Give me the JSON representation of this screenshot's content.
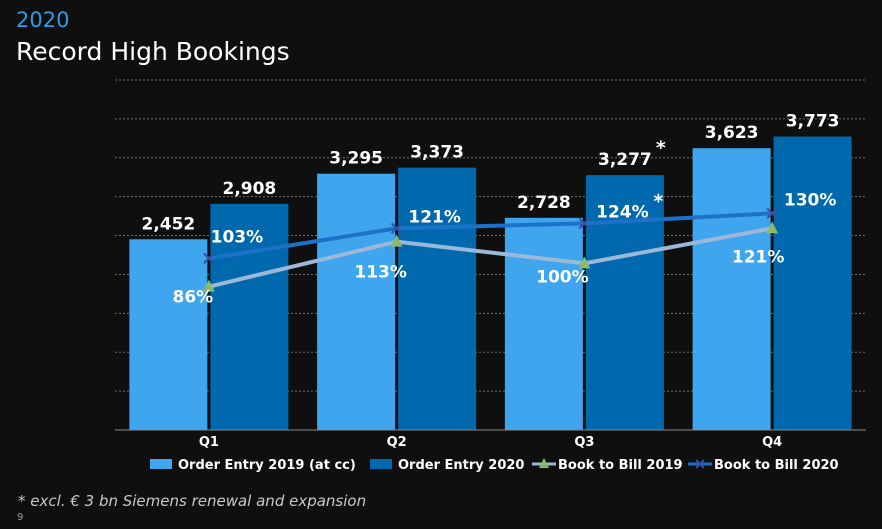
{
  "header": {
    "year": "2020",
    "title": "Record High Bookings"
  },
  "footer": {
    "footnote": "* excl. € 3 bn Siemens renewal and expansion",
    "page_number": "9"
  },
  "colors": {
    "order_entry_2019": "#3ea5ee",
    "order_entry_2020": "#0069ad",
    "book_to_bill_2019": "#9bb8d9",
    "book_to_bill_2019_marker": "#8db96b",
    "book_to_bill_2020": "#1c72c8",
    "gridline": "#6e6e6e"
  },
  "chart_data": {
    "type": "bar",
    "categories": [
      "Q1",
      "Q2",
      "Q3",
      "Q4"
    ],
    "ylim": [
      0,
      4500
    ],
    "y2lim": [
      0,
      2.1
    ],
    "grid": true,
    "legend_position": "bottom",
    "series": [
      {
        "name": "Order Entry 2019 (at cc)",
        "type": "bar",
        "values": [
          2452,
          3295,
          2728,
          3623
        ],
        "labels": [
          "2,452",
          "3,295",
          "2,728",
          "3,623"
        ],
        "annotations": [
          "",
          "",
          "",
          ""
        ]
      },
      {
        "name": "Order Entry 2020",
        "type": "bar",
        "values": [
          2908,
          3373,
          3277,
          3773
        ],
        "labels": [
          "2,908",
          "3,373",
          "3,277",
          "3,773"
        ],
        "annotations": [
          "",
          "",
          "*",
          ""
        ]
      },
      {
        "name": "Book to Bill 2019",
        "type": "line",
        "marker": "triangle",
        "values": [
          0.86,
          1.13,
          1.0,
          1.21
        ],
        "labels": [
          "86%",
          "113%",
          "100%",
          "121%"
        ],
        "annotations": [
          "",
          "",
          "",
          ""
        ]
      },
      {
        "name": "Book to Bill 2020",
        "type": "line",
        "marker": "x",
        "values": [
          1.03,
          1.21,
          1.24,
          1.3
        ],
        "labels": [
          "103%",
          "121%",
          "124%",
          "130%"
        ],
        "annotations": [
          "",
          "",
          "*",
          ""
        ]
      }
    ]
  }
}
